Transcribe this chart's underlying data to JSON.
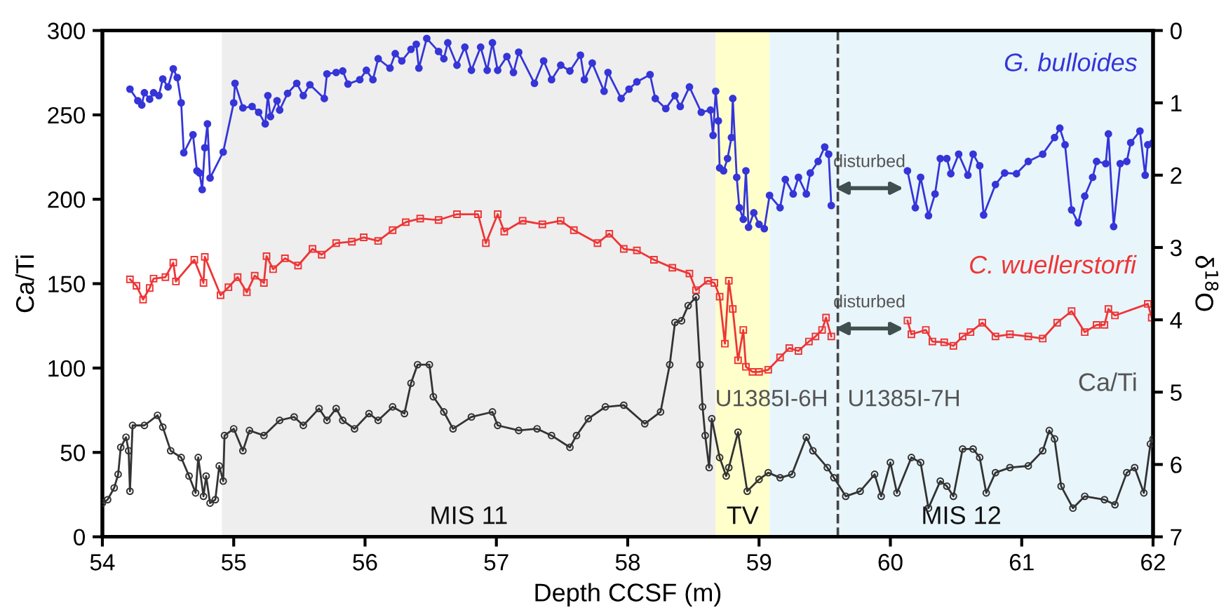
{
  "chart_data": {
    "type": "line",
    "xlabel": "Depth CCSF (m)",
    "ylabel": "Ca/Ti",
    "y2label": "δ$^{18}$O",
    "xlim": [
      54,
      62
    ],
    "xticks": [
      54,
      55,
      56,
      57,
      58,
      59,
      60,
      61,
      62
    ],
    "ylim": [
      0,
      300
    ],
    "yticks": [
      0,
      50,
      100,
      150,
      200,
      250,
      300
    ],
    "y2lim": [
      7,
      0
    ],
    "y2ticks": [
      0,
      1,
      2,
      3,
      4,
      5,
      6,
      7
    ],
    "grid": false,
    "legend": false,
    "series": [
      {
        "name": "G. bulloides",
        "color": "#3535d8",
        "axis": "y2",
        "marker": "circle",
        "x": [
          54.21,
          54.27,
          54.3,
          54.32,
          54.36,
          54.39,
          54.43,
          54.46,
          54.5,
          54.54,
          54.57,
          54.6,
          54.62,
          54.69,
          54.72,
          54.74,
          54.76,
          54.78,
          54.8,
          54.82,
          54.92,
          55.0,
          55.01,
          55.07,
          55.14,
          55.19,
          55.24,
          55.26,
          55.28,
          55.33,
          55.35,
          55.41,
          55.48,
          55.53,
          55.58,
          55.69,
          55.71,
          55.78,
          55.83,
          55.87,
          55.96,
          56.01,
          56.06,
          56.1,
          56.19,
          56.23,
          56.28,
          56.35,
          56.39,
          56.41,
          56.47,
          56.56,
          56.6,
          56.63,
          56.7,
          56.76,
          56.81,
          56.88,
          56.93,
          56.97,
          57.01,
          57.08,
          57.13,
          57.17,
          57.29,
          57.36,
          57.42,
          57.49,
          57.56,
          57.64,
          57.67,
          57.73,
          57.82,
          57.85,
          57.95,
          58.01,
          58.07,
          58.17,
          58.21,
          58.29,
          58.36,
          58.4,
          58.47,
          58.56,
          58.63,
          58.65,
          58.67,
          58.69,
          58.7,
          58.73,
          58.76,
          58.79,
          58.8,
          58.83,
          58.85,
          58.88,
          58.9,
          58.92,
          58.96,
          59.0,
          59.04,
          59.08,
          59.16,
          59.2,
          59.26,
          59.3,
          59.36,
          59.39,
          59.45,
          59.5,
          59.53,
          59.55,
          59.8,
          60.13,
          60.19,
          60.23,
          60.29,
          60.34,
          60.38,
          60.43,
          60.46,
          60.52,
          60.59,
          60.63,
          60.68,
          60.71,
          60.8,
          60.87,
          60.96,
          61.05,
          61.16,
          61.25,
          61.29,
          61.33,
          61.38,
          61.43,
          61.48,
          61.54,
          61.57,
          61.64,
          61.66,
          61.7,
          61.75,
          61.8,
          61.83,
          61.9,
          61.94,
          61.96,
          62.0
        ],
        "values": [
          0.81,
          0.97,
          1.03,
          0.86,
          0.95,
          0.86,
          0.9,
          0.67,
          0.78,
          0.53,
          0.65,
          1.0,
          1.69,
          1.44,
          1.94,
          1.97,
          2.2,
          1.62,
          1.29,
          2.04,
          1.68,
          1.0,
          0.73,
          1.07,
          1.05,
          1.13,
          1.29,
          0.9,
          1.19,
          0.97,
          1.1,
          0.87,
          0.73,
          0.9,
          0.75,
          0.94,
          0.6,
          0.58,
          0.56,
          0.74,
          0.68,
          0.55,
          0.68,
          0.39,
          0.52,
          0.32,
          0.42,
          0.26,
          0.19,
          0.52,
          0.11,
          0.29,
          0.39,
          0.17,
          0.48,
          0.23,
          0.55,
          0.23,
          0.55,
          0.17,
          0.55,
          0.36,
          0.58,
          0.3,
          0.73,
          0.42,
          0.68,
          0.48,
          0.56,
          0.34,
          0.68,
          0.45,
          0.84,
          0.58,
          0.94,
          0.81,
          0.71,
          0.61,
          0.94,
          1.08,
          0.9,
          1.05,
          0.78,
          1.13,
          1.1,
          1.45,
          0.84,
          1.25,
          1.9,
          1.94,
          1.77,
          1.48,
          0.94,
          2.03,
          2.45,
          2.61,
          1.94,
          2.72,
          2.52,
          2.68,
          2.74,
          2.28,
          2.45,
          2.06,
          2.26,
          2.03,
          2.26,
          1.97,
          1.81,
          1.61,
          1.71,
          2.42,
          null,
          1.94,
          2.45,
          2.03,
          2.56,
          2.26,
          1.77,
          1.77,
          1.98,
          1.71,
          2.0,
          1.71,
          1.87,
          2.55,
          2.13,
          1.97,
          1.98,
          1.81,
          1.71,
          1.48,
          1.35,
          1.58,
          2.48,
          2.66,
          2.29,
          2.03,
          1.81,
          1.84,
          1.43,
          2.71,
          1.84,
          1.81,
          1.55,
          1.39,
          2.0,
          1.58,
          1.55
        ]
      },
      {
        "name": "C. wuellerstorfi",
        "color": "#ee3535",
        "axis": "y2",
        "marker": "square",
        "x": [
          54.21,
          54.26,
          54.31,
          54.36,
          54.39,
          54.48,
          54.54,
          54.56,
          54.7,
          54.77,
          54.78,
          54.9,
          54.96,
          55.03,
          55.1,
          55.16,
          55.23,
          55.25,
          55.3,
          55.39,
          55.49,
          55.6,
          55.67,
          55.78,
          55.9,
          55.99,
          56.1,
          56.21,
          56.31,
          56.42,
          56.56,
          56.7,
          56.86,
          56.92,
          57.01,
          57.06,
          57.2,
          57.35,
          57.49,
          57.59,
          57.77,
          57.86,
          57.97,
          58.07,
          58.2,
          58.34,
          58.47,
          58.52,
          58.61,
          58.66,
          58.7,
          58.74,
          58.77,
          58.8,
          58.84,
          58.88,
          58.9,
          58.95,
          59.0,
          59.07,
          59.16,
          59.23,
          59.3,
          59.38,
          59.43,
          59.48,
          59.51,
          59.55,
          59.8,
          60.13,
          60.16,
          60.27,
          60.32,
          60.41,
          60.48,
          60.55,
          60.61,
          60.7,
          60.8,
          60.91,
          61.05,
          61.16,
          61.27,
          61.38,
          61.48,
          61.57,
          61.63,
          61.66,
          61.71,
          61.96,
          61.99
        ],
        "values": [
          3.44,
          3.53,
          3.72,
          3.56,
          3.43,
          3.41,
          3.21,
          3.47,
          3.17,
          3.49,
          3.13,
          3.66,
          3.55,
          3.41,
          3.62,
          3.39,
          3.49,
          3.12,
          3.3,
          3.15,
          3.25,
          3.02,
          3.1,
          2.94,
          2.92,
          2.86,
          2.91,
          2.76,
          2.65,
          2.6,
          2.62,
          2.54,
          2.54,
          2.94,
          2.54,
          2.78,
          2.63,
          2.68,
          2.63,
          2.76,
          2.94,
          2.81,
          3.02,
          3.04,
          3.17,
          3.28,
          3.36,
          3.59,
          3.46,
          3.49,
          3.68,
          4.33,
          3.46,
          3.85,
          4.56,
          4.14,
          4.65,
          4.72,
          4.72,
          4.69,
          4.52,
          4.39,
          4.43,
          4.3,
          4.23,
          4.14,
          3.97,
          4.23,
          null,
          4.01,
          4.2,
          4.14,
          4.3,
          4.31,
          4.36,
          4.23,
          4.17,
          4.04,
          4.23,
          4.2,
          4.23,
          4.26,
          4.04,
          3.88,
          4.17,
          4.07,
          4.07,
          3.85,
          3.94,
          3.78,
          3.97
        ]
      },
      {
        "name": "Ca/Ti",
        "color": "#333333",
        "axis": "y",
        "marker": "circle",
        "x": [
          54.0,
          54.04,
          54.09,
          54.12,
          54.14,
          54.18,
          54.2,
          54.21,
          54.23,
          54.32,
          54.42,
          54.46,
          54.52,
          54.6,
          54.66,
          54.71,
          54.73,
          54.77,
          54.79,
          54.82,
          54.86,
          54.89,
          54.92,
          54.93,
          55.0,
          55.07,
          55.12,
          55.23,
          55.35,
          55.46,
          55.53,
          55.65,
          55.71,
          55.78,
          55.83,
          55.92,
          56.03,
          56.1,
          56.21,
          56.3,
          56.35,
          56.4,
          56.49,
          56.52,
          56.6,
          56.67,
          56.81,
          56.97,
          57.01,
          57.17,
          57.31,
          57.42,
          57.56,
          57.61,
          57.7,
          57.83,
          57.97,
          58.13,
          58.25,
          58.32,
          58.36,
          58.41,
          58.46,
          58.52,
          58.55,
          58.57,
          58.59,
          58.62,
          58.64,
          58.7,
          58.75,
          58.77,
          58.84,
          58.91,
          59.0,
          59.07,
          59.16,
          59.25,
          59.36,
          59.41,
          59.52,
          59.57,
          59.66,
          59.77,
          59.88,
          59.93,
          60.0,
          60.05,
          60.16,
          60.23,
          60.29,
          60.38,
          60.43,
          60.48,
          60.55,
          60.63,
          60.68,
          60.73,
          60.8,
          60.91,
          61.05,
          61.16,
          61.21,
          61.25,
          61.3,
          61.39,
          61.48,
          61.63,
          61.71,
          61.8,
          61.86,
          61.93,
          61.98,
          62.0
        ],
        "values": [
          20,
          22,
          29,
          37,
          53,
          59,
          51,
          27,
          66,
          66,
          72,
          65,
          51,
          47,
          36,
          26,
          47,
          24,
          36,
          20,
          22,
          42,
          33,
          60,
          64,
          51,
          63,
          60,
          69,
          71,
          66,
          76,
          69,
          76,
          69,
          64,
          73,
          69,
          77,
          73,
          91,
          102,
          102,
          83,
          74,
          64,
          71,
          74,
          66,
          63,
          64,
          60,
          53,
          60,
          70,
          77,
          78,
          67,
          74,
          102,
          127,
          128,
          137,
          142,
          102,
          77,
          60,
          41,
          70,
          47,
          36,
          41,
          62,
          27,
          34,
          38,
          35,
          37,
          59,
          51,
          41,
          35,
          24,
          27,
          37,
          24,
          44,
          26,
          47,
          44,
          17,
          33,
          30,
          24,
          52,
          52,
          47,
          26,
          38,
          41,
          42,
          51,
          63,
          58,
          30,
          17,
          24,
          22,
          19,
          38,
          41,
          26,
          55,
          58
        ]
      }
    ],
    "bands": [
      {
        "axis": "x",
        "from": 54.91,
        "to": 58.67,
        "label": "MIS 11",
        "color": "#eeeeee"
      },
      {
        "axis": "x",
        "from": 58.67,
        "to": 59.08,
        "label": "TV",
        "color": "#ffffcc"
      },
      {
        "axis": "x",
        "from": 59.08,
        "to": 62,
        "label": "MIS 12",
        "color": "#e8f5fb"
      }
    ],
    "ref_lines": [
      {
        "axis": "x",
        "value": 59.6,
        "color": "#444444",
        "line_style": "dashed"
      }
    ],
    "annotations": [
      "disturbed",
      "disturbed",
      "U1385I-6H",
      "U1385I-7H"
    ]
  }
}
